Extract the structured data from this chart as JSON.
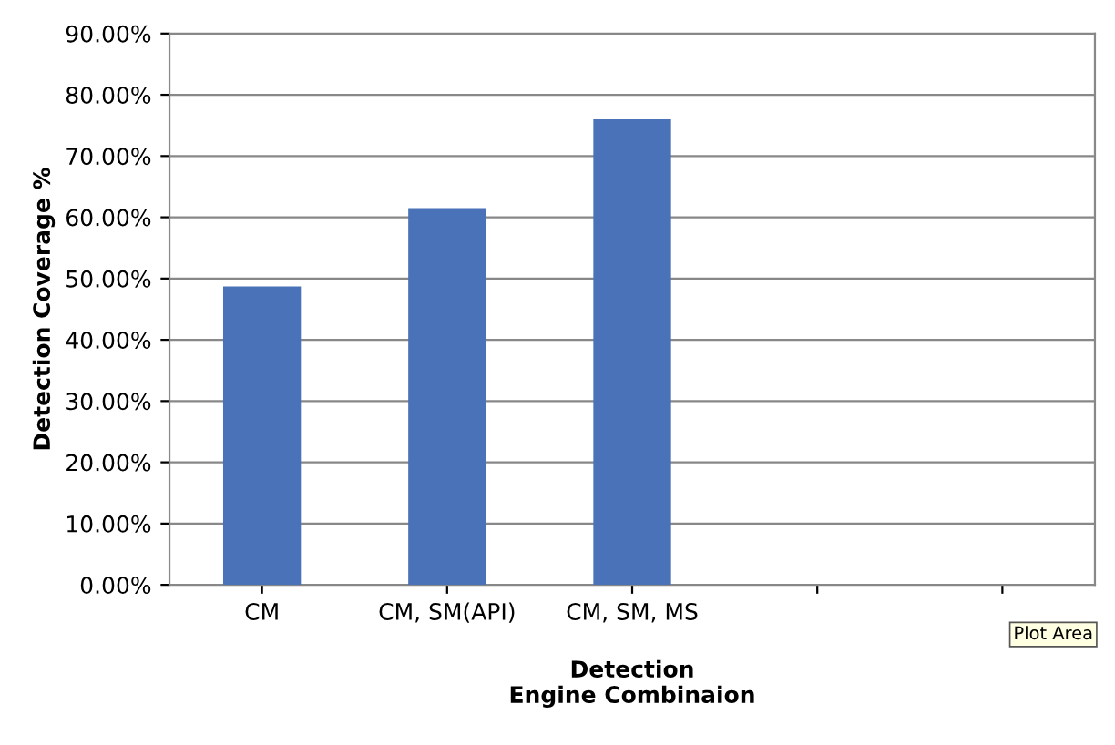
{
  "chart_data": {
    "type": "bar",
    "categories": [
      "CM",
      "CM, SM(API)",
      "CM, SM, MS",
      null,
      null
    ],
    "values": [
      48.7,
      61.5,
      76.0,
      null,
      null
    ],
    "color": "#4a72b8",
    "xlabel": "Detection\nEngine Combinaion",
    "ylabel": "Detection Coverage %",
    "ylim": [
      0,
      90
    ],
    "yticks": [
      {
        "value": 0,
        "label": "0.00%"
      },
      {
        "value": 10,
        "label": "10.00%"
      },
      {
        "value": 20,
        "label": "20.00%"
      },
      {
        "value": 30,
        "label": "30.00%"
      },
      {
        "value": 40,
        "label": "40.00%"
      },
      {
        "value": 50,
        "label": "50.00%"
      },
      {
        "value": 60,
        "label": "60.00%"
      },
      {
        "value": 70,
        "label": "70.00%"
      },
      {
        "value": 80,
        "label": "80.00%"
      },
      {
        "value": 90,
        "label": "90.00%"
      }
    ],
    "grid": "y",
    "annotations": [
      "Plot Area"
    ]
  }
}
